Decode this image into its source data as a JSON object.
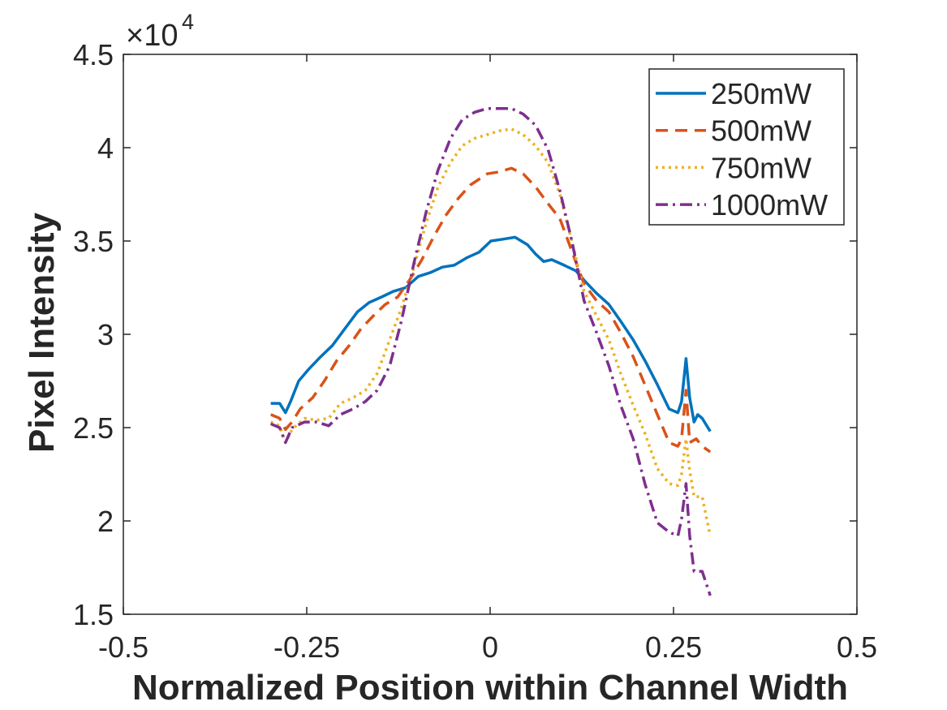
{
  "chart_data": {
    "type": "line",
    "xlabel": "Normalized Position within Channel Width",
    "ylabel": "Pixel Intensity",
    "xlim": [
      -0.5,
      0.5
    ],
    "ylim": [
      1.5,
      4.5
    ],
    "x_ticks": [
      "-0.5",
      "-0.25",
      "0",
      "0.25",
      "0.5"
    ],
    "y_ticks": [
      "1.5",
      "2",
      "2.5",
      "3",
      "3.5",
      "4",
      "4.5"
    ],
    "y_multiplier": {
      "base": "×10",
      "exponent": "4"
    },
    "grid": false,
    "box": true,
    "legend_position": "top-right",
    "series": [
      {
        "name": "250mW",
        "color": "#0072BD",
        "style": "solid",
        "x": [
          -0.299,
          -0.287,
          -0.279,
          -0.272,
          -0.261,
          -0.248,
          -0.231,
          -0.215,
          -0.198,
          -0.181,
          -0.165,
          -0.148,
          -0.132,
          -0.115,
          -0.098,
          -0.082,
          -0.065,
          -0.049,
          -0.032,
          -0.015,
          0.001,
          0.018,
          0.034,
          0.051,
          0.062,
          0.073,
          0.084,
          0.101,
          0.117,
          0.128,
          0.145,
          0.162,
          0.178,
          0.195,
          0.211,
          0.228,
          0.244,
          0.256,
          0.261,
          0.267,
          0.272,
          0.278,
          0.283,
          0.289,
          0.3
        ],
        "y": [
          2.63,
          2.63,
          2.58,
          2.64,
          2.75,
          2.81,
          2.88,
          2.94,
          3.03,
          3.12,
          3.17,
          3.2,
          3.23,
          3.25,
          3.31,
          3.33,
          3.36,
          3.37,
          3.41,
          3.44,
          3.5,
          3.51,
          3.52,
          3.48,
          3.43,
          3.39,
          3.4,
          3.37,
          3.34,
          3.29,
          3.22,
          3.16,
          3.07,
          2.97,
          2.86,
          2.73,
          2.6,
          2.58,
          2.64,
          2.87,
          2.66,
          2.53,
          2.57,
          2.55,
          2.48
        ]
      },
      {
        "name": "500mW",
        "color": "#D95319",
        "style": "dashed",
        "x": [
          -0.299,
          -0.287,
          -0.279,
          -0.27,
          -0.259,
          -0.242,
          -0.226,
          -0.209,
          -0.192,
          -0.176,
          -0.159,
          -0.143,
          -0.126,
          -0.11,
          -0.093,
          -0.076,
          -0.06,
          -0.043,
          -0.027,
          -0.004,
          0.012,
          0.029,
          0.045,
          0.062,
          0.079,
          0.095,
          0.112,
          0.128,
          0.145,
          0.162,
          0.178,
          0.195,
          0.211,
          0.228,
          0.244,
          0.256,
          0.261,
          0.267,
          0.272,
          0.281,
          0.289,
          0.3
        ],
        "y": [
          2.57,
          2.55,
          2.49,
          2.53,
          2.6,
          2.66,
          2.75,
          2.86,
          2.94,
          3.03,
          3.1,
          3.16,
          3.2,
          3.29,
          3.4,
          3.53,
          3.64,
          3.73,
          3.8,
          3.86,
          3.87,
          3.89,
          3.86,
          3.79,
          3.7,
          3.62,
          3.44,
          3.27,
          3.18,
          3.12,
          3.01,
          2.88,
          2.73,
          2.57,
          2.42,
          2.4,
          2.44,
          2.7,
          2.42,
          2.44,
          2.4,
          2.37
        ]
      },
      {
        "name": "750mW",
        "color": "#EDB120",
        "style": "dotted",
        "x": [
          -0.299,
          -0.287,
          -0.279,
          -0.27,
          -0.253,
          -0.237,
          -0.22,
          -0.204,
          -0.187,
          -0.17,
          -0.154,
          -0.137,
          -0.121,
          -0.104,
          -0.087,
          -0.071,
          -0.054,
          -0.038,
          -0.021,
          -0.004,
          0.012,
          0.029,
          0.045,
          0.062,
          0.079,
          0.095,
          0.112,
          0.128,
          0.145,
          0.162,
          0.178,
          0.195,
          0.211,
          0.228,
          0.244,
          0.256,
          0.261,
          0.267,
          0.272,
          0.278,
          0.289,
          0.3
        ],
        "y": [
          2.53,
          2.51,
          2.42,
          2.49,
          2.55,
          2.54,
          2.55,
          2.63,
          2.66,
          2.7,
          2.79,
          2.97,
          3.14,
          3.36,
          3.6,
          3.79,
          3.92,
          4.01,
          4.05,
          4.07,
          4.09,
          4.1,
          4.07,
          4.01,
          3.92,
          3.75,
          3.49,
          3.23,
          3.1,
          2.97,
          2.79,
          2.62,
          2.47,
          2.28,
          2.2,
          2.19,
          2.25,
          2.44,
          2.27,
          2.13,
          2.13,
          1.92
        ]
      },
      {
        "name": "1000mW",
        "color": "#7E2F8E",
        "style": "dashdot",
        "x": [
          -0.299,
          -0.287,
          -0.279,
          -0.27,
          -0.253,
          -0.237,
          -0.22,
          -0.204,
          -0.187,
          -0.17,
          -0.154,
          -0.137,
          -0.121,
          -0.104,
          -0.087,
          -0.071,
          -0.054,
          -0.038,
          -0.021,
          -0.004,
          0.012,
          0.029,
          0.045,
          0.062,
          0.079,
          0.095,
          0.112,
          0.128,
          0.145,
          0.162,
          0.178,
          0.195,
          0.211,
          0.228,
          0.244,
          0.256,
          0.261,
          0.267,
          0.272,
          0.278,
          0.289,
          0.3
        ],
        "y": [
          2.52,
          2.5,
          2.42,
          2.5,
          2.53,
          2.53,
          2.51,
          2.57,
          2.6,
          2.64,
          2.7,
          2.83,
          3.07,
          3.38,
          3.66,
          3.88,
          4.05,
          4.15,
          4.19,
          4.21,
          4.21,
          4.21,
          4.18,
          4.12,
          3.99,
          3.77,
          3.49,
          3.18,
          3.01,
          2.83,
          2.62,
          2.44,
          2.2,
          1.99,
          1.94,
          1.92,
          2.01,
          2.2,
          1.92,
          1.73,
          1.73,
          1.6
        ]
      }
    ]
  }
}
